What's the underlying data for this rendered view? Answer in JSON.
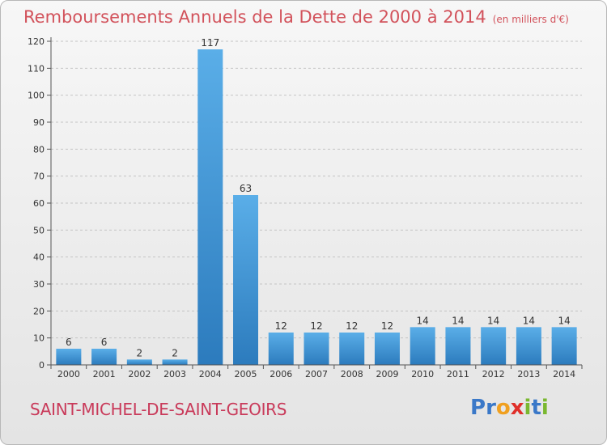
{
  "title": "Remboursements Annuels de la Dette de 2000 à 2014",
  "subtitle": "(en milliers d'€)",
  "place": "SAINT-MICHEL-DE-SAINT-GEOIRS",
  "logo": {
    "letters": [
      "P",
      "r",
      "o",
      "x",
      "i",
      "t",
      "i"
    ],
    "colors": [
      "#3a78c8",
      "#3a78c8",
      "#f0a020",
      "#e0302a",
      "#7ab830",
      "#3a78c8",
      "#7ab830"
    ]
  },
  "colors": {
    "bar_light": "#5aaee8",
    "bar_dark": "#2c7bbd",
    "title": "#d2525b"
  },
  "chart_data": {
    "type": "bar",
    "categories": [
      "2000",
      "2001",
      "2002",
      "2003",
      "2004",
      "2005",
      "2006",
      "2007",
      "2008",
      "2009",
      "2010",
      "2011",
      "2012",
      "2013",
      "2014"
    ],
    "values": [
      6,
      6,
      2,
      2,
      117,
      63,
      12,
      12,
      12,
      12,
      14,
      14,
      14,
      14,
      14
    ],
    "yticks": [
      0,
      10,
      20,
      30,
      40,
      50,
      60,
      70,
      80,
      90,
      100,
      110,
      120
    ],
    "ylim": [
      0,
      120
    ],
    "grid": "horizontal dashed"
  }
}
